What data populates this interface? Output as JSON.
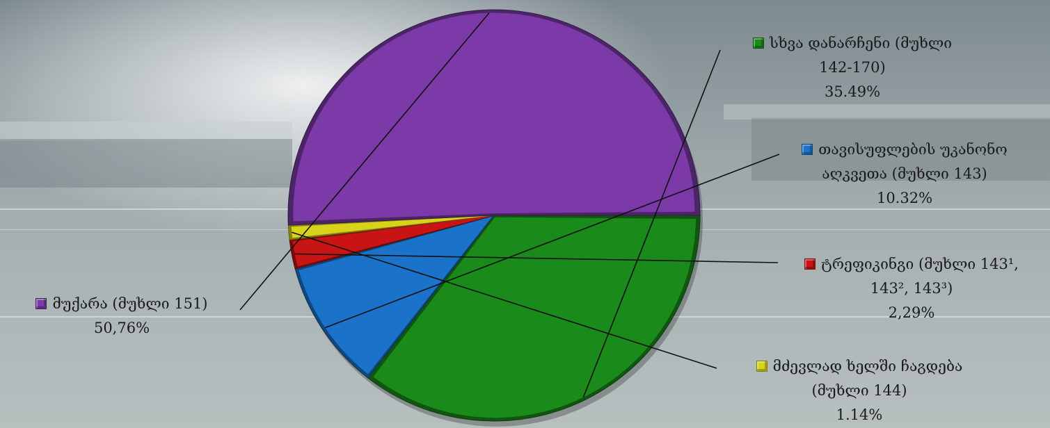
{
  "chart_data": {
    "type": "pie",
    "slices": [
      {
        "label": "სხვა დანარჩენი (მუხლი 142-170)",
        "label_lines": [
          "სხვა დანარჩენი (მუხლი",
          "142-170)"
        ],
        "value_text": "35.49%",
        "value": 35.49,
        "color": "#1a8a1a"
      },
      {
        "label": "თავისუფლების უკანონო აღკვეთა (მუხლი 143)",
        "label_lines": [
          "თავისუფლების უკანონო",
          "აღკვეთა (მუხლი 143)"
        ],
        "value_text": "10.32%",
        "value": 10.32,
        "color": "#1a73c8"
      },
      {
        "label": "ტრეფიკინგი (მუხლი 143¹, 143², 143³)",
        "label_lines": [
          "ტრეფიკინგი (მუხლი 143¹,",
          "143², 143³)"
        ],
        "value_text": "2,29%",
        "value": 2.29,
        "color": "#c81414"
      },
      {
        "label": "მძევლად ხელში ჩაგდება (მუხლი 144)",
        "label_lines": [
          "მძევლად ხელში ჩაგდება",
          "(მუხლი 144)"
        ],
        "value_text": "1.14%",
        "value": 1.14,
        "color": "#d8d21a"
      },
      {
        "label": "მუქარა (მუხლი 151)",
        "label_lines": [
          "მუქარა (მუხლი 151)"
        ],
        "value_text": "50,76%",
        "value": 50.76,
        "color": "#7b3aa8"
      }
    ],
    "start_angle_deg": 0,
    "direction": "clockwise",
    "legend": "labels-around"
  }
}
